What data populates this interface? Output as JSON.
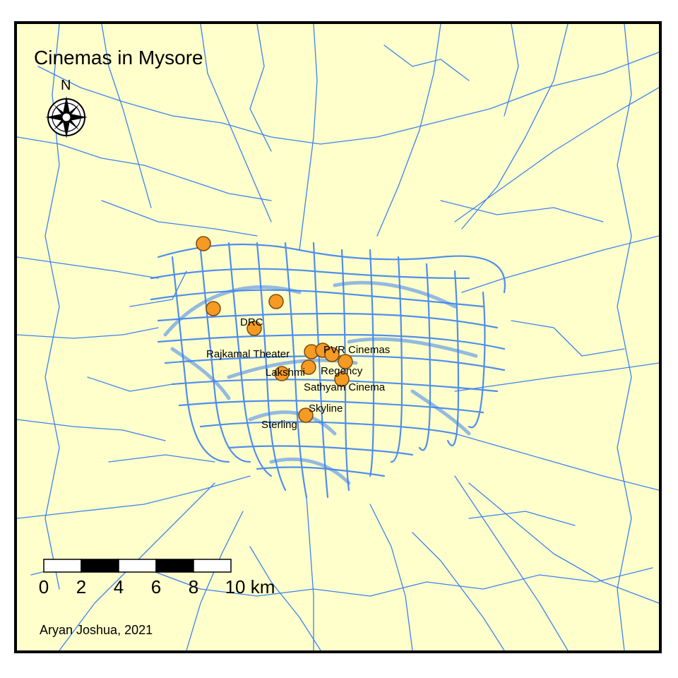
{
  "map": {
    "title": "Cinemas in Mysore",
    "north_label": "N",
    "credit": "Aryan Joshua, 2021",
    "scale_bar": {
      "ticks": [
        "0",
        "2",
        "4",
        "6",
        "8",
        "10 km"
      ]
    },
    "colors": {
      "background": "#ffffcc",
      "roads": "#3c82f0",
      "cinema_fill": "#f59a23",
      "cinema_stroke": "#7a4a10",
      "frame": "#000000"
    },
    "cinemas": [
      {
        "name": "DRC"
      },
      {
        "name": "Rajkamal Theater"
      },
      {
        "name": "PVR Cinemas"
      },
      {
        "name": "Lakshmi"
      },
      {
        "name": "Regency"
      },
      {
        "name": "Sathyam Cinema"
      },
      {
        "name": "Skyline"
      },
      {
        "name": "Sterling"
      }
    ]
  }
}
